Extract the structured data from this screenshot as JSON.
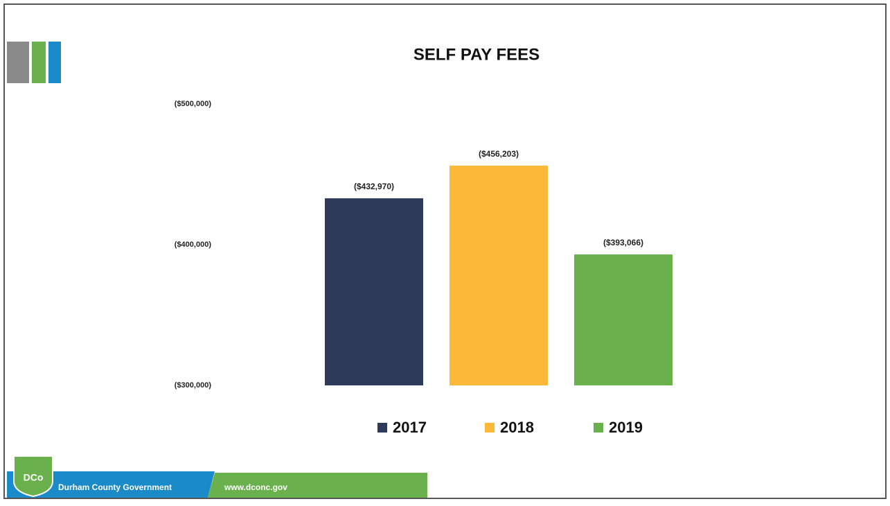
{
  "chart_data": {
    "type": "bar",
    "title": "SELF PAY FEES",
    "categories": [
      null
    ],
    "series": [
      {
        "name": "2017",
        "color": "#2e3a59",
        "values": [
          -432970
        ],
        "value_labels": [
          "($432,970)"
        ]
      },
      {
        "name": "2018",
        "color": "#fbb93a",
        "values": [
          -456203
        ],
        "value_labels": [
          "($456,203)"
        ]
      },
      {
        "name": "2019",
        "color": "#6ab04c",
        "values": [
          -393066
        ],
        "value_labels": [
          "($393,066)"
        ]
      }
    ],
    "ylim": [
      -300000,
      -500000
    ],
    "yticks": [
      {
        "value": -300000,
        "label": "($300,000)"
      },
      {
        "value": -400000,
        "label": "($400,000)"
      },
      {
        "value": -500000,
        "label": "($500,000)"
      }
    ],
    "grid": false
  },
  "footer": {
    "logo": "DCo",
    "name": "Durham County Government",
    "url": "www.dconc.gov"
  }
}
